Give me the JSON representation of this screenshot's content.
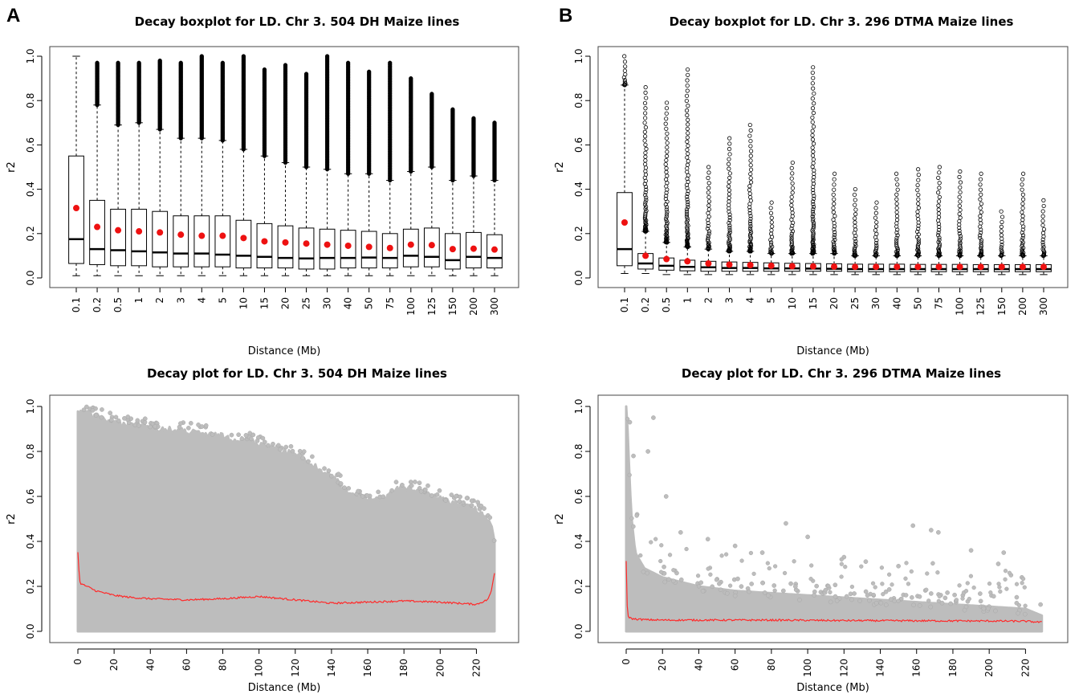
{
  "panel_letters": [
    "A",
    "B"
  ],
  "colors": {
    "median": "#000000",
    "mean": "#ee1111",
    "outlier": "#000000",
    "scatter": "#bdbdbd",
    "decay_line": "#ff2a2a"
  },
  "chart_data": [
    {
      "type": "boxplot",
      "title": "Decay boxplot for LD. Chr 3. 504 DH Maize lines",
      "xlabel": "Distance (Mb)",
      "ylabel": "r2",
      "ylim": [
        0,
        1
      ],
      "yticks": [
        "0.0",
        "0.2",
        "0.4",
        "0.6",
        "0.8",
        "1.0"
      ],
      "categories": [
        "0.1",
        "0.2",
        "0.5",
        "1",
        "2",
        "3",
        "4",
        "5",
        "10",
        "15",
        "20",
        "25",
        "30",
        "40",
        "50",
        "75",
        "100",
        "125",
        "150",
        "200",
        "300"
      ],
      "median": [
        0.175,
        0.13,
        0.125,
        0.12,
        0.115,
        0.11,
        0.11,
        0.105,
        0.1,
        0.095,
        0.09,
        0.088,
        0.09,
        0.09,
        0.092,
        0.09,
        0.1,
        0.095,
        0.08,
        0.095,
        0.09
      ],
      "q1": [
        0.065,
        0.06,
        0.055,
        0.055,
        0.05,
        0.05,
        0.05,
        0.05,
        0.045,
        0.045,
        0.045,
        0.04,
        0.04,
        0.045,
        0.045,
        0.045,
        0.05,
        0.05,
        0.04,
        0.045,
        0.045
      ],
      "q3": [
        0.55,
        0.35,
        0.31,
        0.31,
        0.3,
        0.28,
        0.28,
        0.28,
        0.26,
        0.245,
        0.235,
        0.225,
        0.22,
        0.215,
        0.21,
        0.2,
        0.22,
        0.225,
        0.2,
        0.205,
        0.195
      ],
      "whisker_low": [
        0.01,
        0.01,
        0.01,
        0.01,
        0.01,
        0.01,
        0.01,
        0.01,
        0.01,
        0.01,
        0.01,
        0.01,
        0.01,
        0.01,
        0.01,
        0.01,
        0.01,
        0.01,
        0.01,
        0.01,
        0.01
      ],
      "whisker_high": [
        1.0,
        0.78,
        0.69,
        0.7,
        0.67,
        0.63,
        0.63,
        0.62,
        0.58,
        0.55,
        0.52,
        0.5,
        0.49,
        0.47,
        0.47,
        0.44,
        0.48,
        0.5,
        0.44,
        0.46,
        0.44
      ],
      "outlier_max": [
        1.0,
        0.97,
        0.97,
        0.97,
        0.98,
        0.97,
        1.0,
        0.97,
        1.0,
        0.94,
        0.96,
        0.92,
        1.0,
        0.97,
        0.93,
        0.97,
        0.9,
        0.83,
        0.76,
        0.72,
        0.7
      ],
      "mean": [
        0.315,
        0.23,
        0.215,
        0.21,
        0.205,
        0.195,
        0.19,
        0.19,
        0.18,
        0.165,
        0.16,
        0.155,
        0.15,
        0.145,
        0.14,
        0.135,
        0.15,
        0.148,
        0.13,
        0.132,
        0.128
      ]
    },
    {
      "type": "boxplot",
      "title": "Decay boxplot for LD. Chr 3. 296 DTMA Maize lines",
      "xlabel": "Distance (Mb)",
      "ylabel": "r2",
      "ylim": [
        0,
        1
      ],
      "yticks": [
        "0.0",
        "0.2",
        "0.4",
        "0.6",
        "0.8",
        "1.0"
      ],
      "categories": [
        "0.1",
        "0.2",
        "0.5",
        "1",
        "2",
        "3",
        "4",
        "5",
        "10",
        "15",
        "20",
        "25",
        "30",
        "40",
        "50",
        "75",
        "100",
        "125",
        "150",
        "200",
        "300"
      ],
      "median": [
        0.13,
        0.065,
        0.055,
        0.05,
        0.048,
        0.045,
        0.045,
        0.043,
        0.043,
        0.042,
        0.041,
        0.04,
        0.04,
        0.04,
        0.04,
        0.04,
        0.04,
        0.04,
        0.04,
        0.04,
        0.04
      ],
      "q1": [
        0.055,
        0.04,
        0.035,
        0.032,
        0.03,
        0.03,
        0.03,
        0.03,
        0.03,
        0.03,
        0.03,
        0.028,
        0.028,
        0.028,
        0.028,
        0.028,
        0.028,
        0.028,
        0.028,
        0.028,
        0.028
      ],
      "q3": [
        0.385,
        0.11,
        0.09,
        0.08,
        0.075,
        0.072,
        0.07,
        0.068,
        0.066,
        0.065,
        0.064,
        0.062,
        0.062,
        0.062,
        0.061,
        0.061,
        0.061,
        0.06,
        0.06,
        0.06,
        0.06
      ],
      "whisker_low": [
        0.02,
        0.02,
        0.015,
        0.015,
        0.015,
        0.015,
        0.015,
        0.015,
        0.015,
        0.015,
        0.015,
        0.015,
        0.015,
        0.015,
        0.015,
        0.015,
        0.015,
        0.015,
        0.015,
        0.015,
        0.015
      ],
      "whisker_high": [
        0.87,
        0.21,
        0.16,
        0.14,
        0.13,
        0.12,
        0.12,
        0.11,
        0.11,
        0.11,
        0.11,
        0.1,
        0.1,
        0.1,
        0.1,
        0.1,
        0.1,
        0.1,
        0.1,
        0.1,
        0.1
      ],
      "outlier_max": [
        1.0,
        0.86,
        0.79,
        0.94,
        0.5,
        0.63,
        0.69,
        0.34,
        0.52,
        0.95,
        0.47,
        0.4,
        0.34,
        0.47,
        0.49,
        0.5,
        0.48,
        0.47,
        0.3,
        0.47,
        0.35
      ],
      "mean": [
        0.25,
        0.1,
        0.085,
        0.075,
        0.065,
        0.06,
        0.058,
        0.055,
        0.053,
        0.052,
        0.051,
        0.05,
        0.05,
        0.05,
        0.05,
        0.05,
        0.05,
        0.05,
        0.05,
        0.05,
        0.05
      ]
    },
    {
      "type": "scatter",
      "title": "Decay plot for LD. Chr 3. 504 DH Maize lines",
      "xlabel": "Distance (Mb)",
      "ylabel": "r2",
      "xlim": [
        0,
        230
      ],
      "ylim": [
        0,
        1
      ],
      "xticks": [
        "0",
        "20",
        "40",
        "60",
        "80",
        "100",
        "120",
        "140",
        "160",
        "180",
        "200",
        "220"
      ],
      "yticks": [
        "0.0",
        "0.2",
        "0.4",
        "0.6",
        "0.8",
        "1.0"
      ],
      "envelope": {
        "x": [
          0,
          10,
          20,
          40,
          60,
          80,
          100,
          120,
          140,
          150,
          160,
          170,
          180,
          190,
          200,
          210,
          220,
          228,
          230
        ],
        "y": [
          1.0,
          0.97,
          0.94,
          0.92,
          0.9,
          0.88,
          0.85,
          0.8,
          0.7,
          0.63,
          0.6,
          0.61,
          0.66,
          0.63,
          0.6,
          0.58,
          0.56,
          0.5,
          0.4
        ]
      },
      "mean_line": {
        "x": [
          0,
          1,
          2,
          5,
          10,
          20,
          30,
          40,
          60,
          80,
          100,
          120,
          140,
          160,
          180,
          200,
          220,
          226,
          228,
          230
        ],
        "y": [
          0.35,
          0.22,
          0.21,
          0.2,
          0.18,
          0.16,
          0.15,
          0.145,
          0.14,
          0.145,
          0.155,
          0.14,
          0.125,
          0.13,
          0.135,
          0.13,
          0.12,
          0.14,
          0.17,
          0.26
        ]
      }
    },
    {
      "type": "scatter",
      "title": "Decay plot for LD. Chr 3. 296 DTMA Maize lines",
      "xlabel": "Distance (Mb)",
      "ylabel": "r2",
      "xlim": [
        0,
        230
      ],
      "ylim": [
        0,
        1
      ],
      "xticks": [
        "0",
        "20",
        "40",
        "60",
        "80",
        "100",
        "120",
        "140",
        "160",
        "180",
        "200",
        "220"
      ],
      "yticks": [
        "0.0",
        "0.2",
        "0.4",
        "0.6",
        "0.8",
        "1.0"
      ],
      "envelope": {
        "x": [
          0,
          0.5,
          1,
          2,
          3,
          5,
          10,
          20,
          40,
          60,
          80,
          100,
          120,
          140,
          160,
          180,
          200,
          220,
          229
        ],
        "y": [
          1.0,
          0.95,
          0.85,
          0.65,
          0.5,
          0.35,
          0.28,
          0.24,
          0.2,
          0.18,
          0.17,
          0.16,
          0.15,
          0.14,
          0.13,
          0.12,
          0.11,
          0.1,
          0.07
        ]
      },
      "mean_line": {
        "x": [
          0,
          0.5,
          1,
          2,
          4,
          10,
          20,
          40,
          80,
          120,
          160,
          200,
          220,
          229
        ],
        "y": [
          0.31,
          0.12,
          0.07,
          0.06,
          0.055,
          0.052,
          0.05,
          0.05,
          0.05,
          0.048,
          0.047,
          0.046,
          0.045,
          0.04
        ]
      },
      "scatter_outliers": {
        "x": [
          2,
          4,
          6,
          12,
          15,
          22,
          30,
          45,
          60,
          75,
          88,
          100,
          120,
          132,
          150,
          158,
          168,
          172,
          190,
          205,
          208,
          212,
          218
        ],
        "y": [
          0.93,
          0.78,
          0.52,
          0.8,
          0.95,
          0.6,
          0.44,
          0.41,
          0.38,
          0.35,
          0.48,
          0.42,
          0.33,
          0.31,
          0.29,
          0.47,
          0.45,
          0.44,
          0.36,
          0.3,
          0.35,
          0.25,
          0.24
        ]
      }
    }
  ]
}
